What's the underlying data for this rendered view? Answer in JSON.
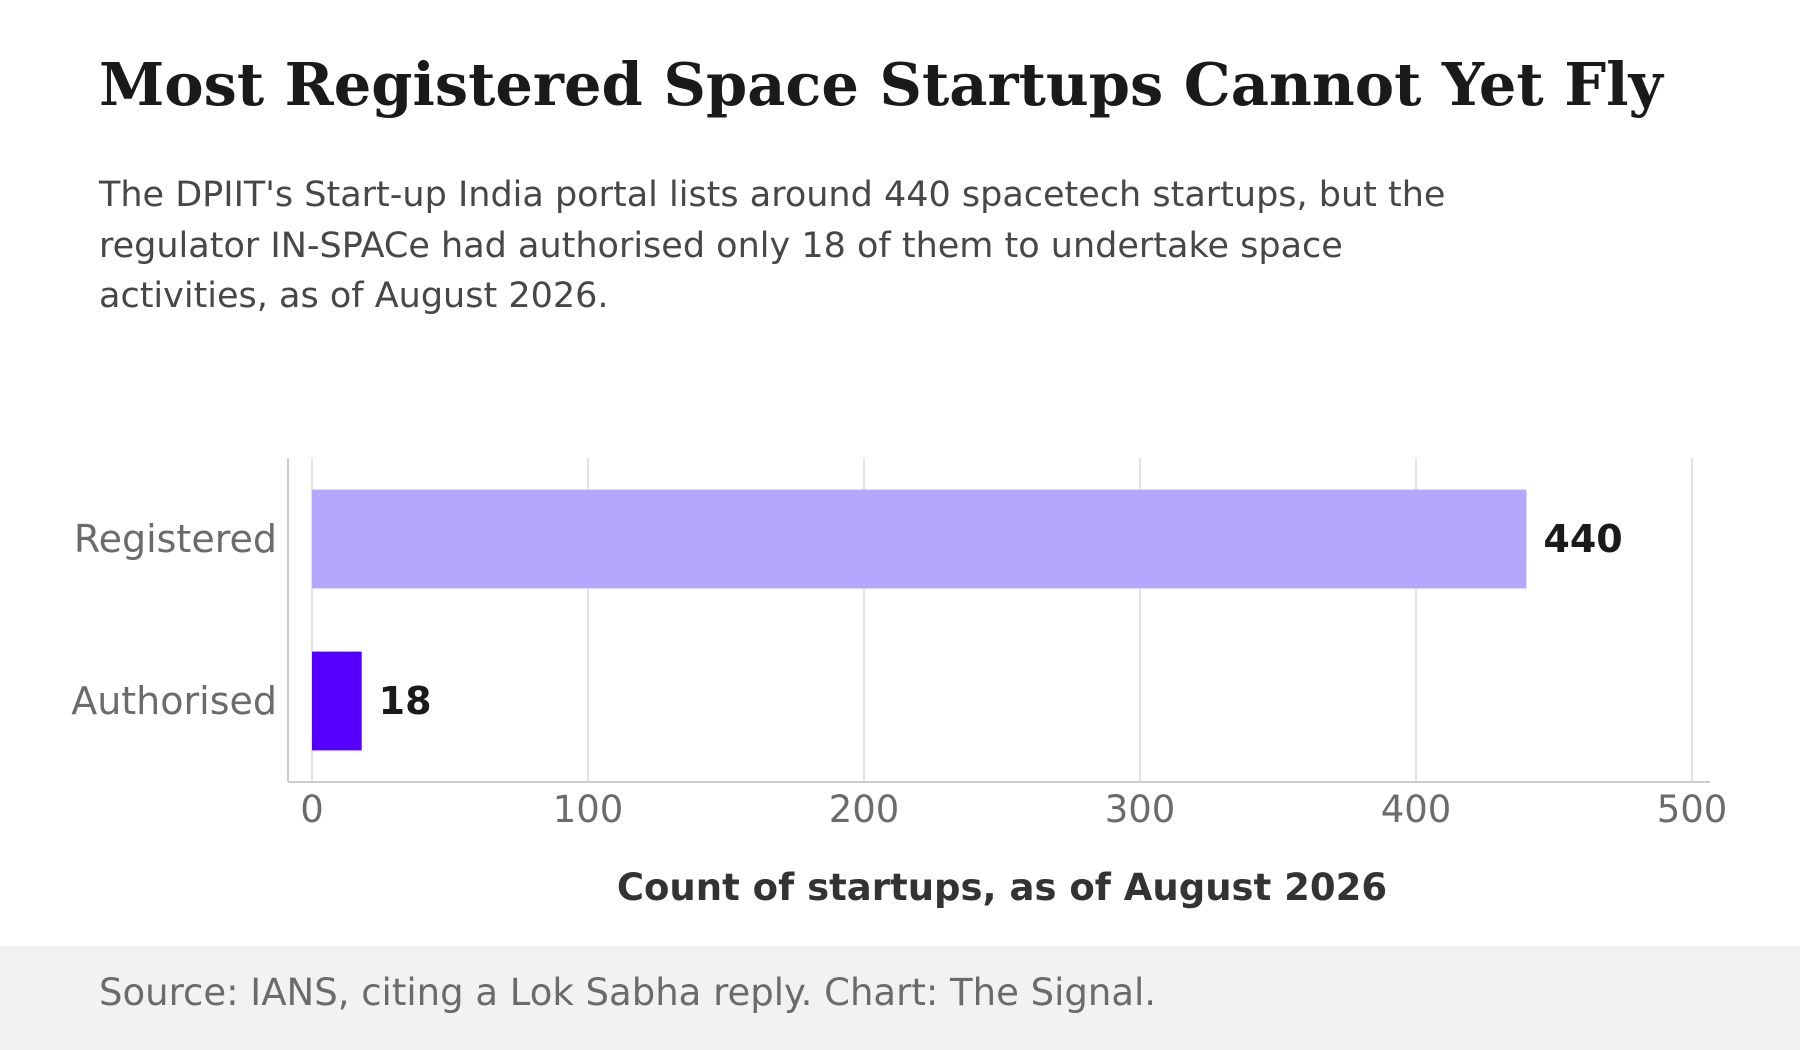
{
  "header": {
    "title": "Most Registered Space Startups Cannot Yet Fly",
    "subtitle": "The DPIIT's Start-up India portal lists around 440 spacetech startups, but the regulator IN-SPACe had authorised only 18 of them to undertake space activities, as of August 2026."
  },
  "footer": {
    "source": "Source: IANS, citing a Lok Sabha reply. Chart: The Signal."
  },
  "chart_data": {
    "type": "bar",
    "orientation": "horizontal",
    "categories": [
      "Registered",
      "Authorised"
    ],
    "values": [
      440,
      18
    ],
    "colors": [
      "#b5a8fc",
      "#5500ff"
    ],
    "xlabel": "Count of startups, as of August 2026",
    "ylabel": "",
    "xlim": [
      0,
      500
    ],
    "xticks": [
      0,
      100,
      200,
      300,
      400,
      500
    ],
    "grid": "vertical",
    "legend": "none"
  }
}
